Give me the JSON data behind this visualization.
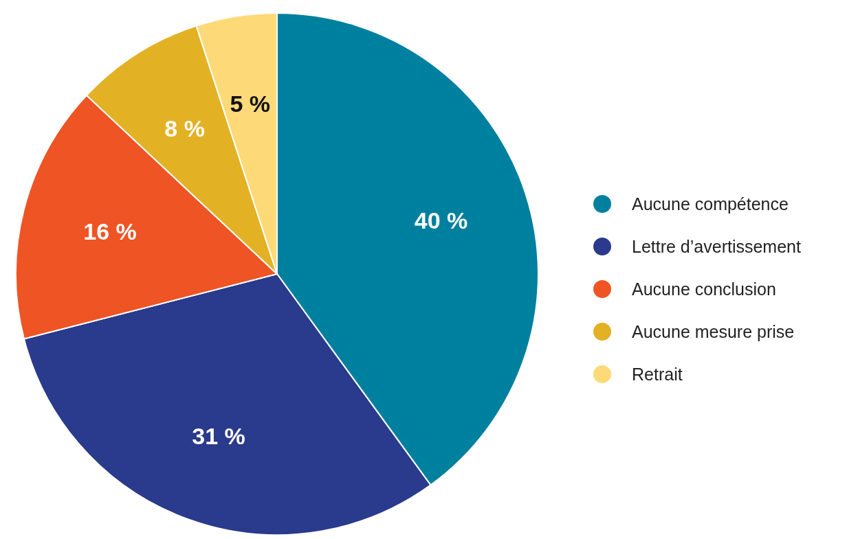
{
  "chart_data": {
    "type": "pie",
    "categories": [
      "Aucune compétence",
      "Lettre d’avertissement",
      "Aucune conclusion",
      "Aucune mesure prise",
      "Retrait"
    ],
    "values": [
      40,
      31,
      16,
      8,
      5
    ],
    "value_labels": [
      "40 %",
      "31 %",
      "16 %",
      "8 %",
      "5 %"
    ],
    "colors": [
      "#00809f",
      "#2a3a8c",
      "#ee5424",
      "#e3b124",
      "#fdd978"
    ],
    "legend": "right"
  }
}
